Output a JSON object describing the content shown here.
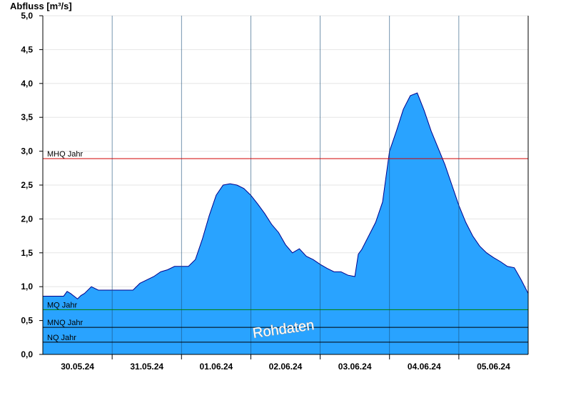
{
  "chart_data": {
    "type": "area",
    "ylabel": "Abfluss [m³/s]",
    "ylim": [
      0,
      5.0
    ],
    "yticks": [
      0,
      0.5,
      1.0,
      1.5,
      2.0,
      2.5,
      3.0,
      3.5,
      4.0,
      4.5,
      5.0
    ],
    "ytick_labels": [
      "0,0",
      "0,5",
      "1,0",
      "1,5",
      "2,0",
      "2,5",
      "3,0",
      "3,5",
      "4,0",
      "4,5",
      "5,0"
    ],
    "xticks": [
      "30.05.24",
      "31.05.24",
      "01.06.24",
      "02.06.24",
      "03.06.24",
      "04.06.24",
      "05.06.24"
    ],
    "x_range_days": [
      -0.5,
      6.5
    ],
    "grid": true,
    "colors": {
      "fill": "#29a3ff",
      "line": "#00008b",
      "mhq": "#d00000",
      "mq": "#008000",
      "mnq": "#000000",
      "nq": "#000000"
    },
    "reference_lines": [
      {
        "name": "MHQ Jahr",
        "value": 2.89,
        "color": "#d00000"
      },
      {
        "name": "MQ Jahr",
        "value": 0.66,
        "color": "#008000"
      },
      {
        "name": "MNQ Jahr",
        "value": 0.4,
        "color": "#000000"
      },
      {
        "name": "NQ Jahr",
        "value": 0.18,
        "color": "#000000"
      }
    ],
    "watermark": "Rohdaten",
    "series": [
      {
        "x": [
          -0.5,
          -0.2,
          -0.15,
          -0.1,
          0.0,
          0.05,
          0.1,
          0.2,
          0.3,
          0.4,
          0.5,
          0.8,
          0.9,
          1.0,
          1.1,
          1.2,
          1.3,
          1.4,
          1.5,
          1.6,
          1.7,
          1.8,
          1.9,
          2.0,
          2.1,
          2.2,
          2.3,
          2.4,
          2.5,
          2.6,
          2.7,
          2.8,
          2.9,
          3.0,
          3.1,
          3.2,
          3.3,
          3.4,
          3.5,
          3.6,
          3.7,
          3.8,
          3.9,
          4.0,
          4.05,
          4.1,
          4.2,
          4.3,
          4.4,
          4.5,
          4.6,
          4.7,
          4.8,
          4.9,
          5.0,
          5.1,
          5.2,
          5.3,
          5.4,
          5.5,
          5.6,
          5.7,
          5.8,
          5.9,
          6.0,
          6.1,
          6.2,
          6.3,
          6.4,
          6.5
        ],
        "y": [
          0.86,
          0.86,
          0.93,
          0.9,
          0.82,
          0.87,
          0.9,
          1.0,
          0.95,
          0.95,
          0.95,
          0.95,
          1.05,
          1.1,
          1.15,
          1.22,
          1.25,
          1.3,
          1.3,
          1.3,
          1.4,
          1.7,
          2.05,
          2.35,
          2.5,
          2.52,
          2.5,
          2.45,
          2.35,
          2.22,
          2.08,
          1.92,
          1.8,
          1.62,
          1.5,
          1.56,
          1.45,
          1.4,
          1.33,
          1.27,
          1.22,
          1.22,
          1.17,
          1.15,
          1.48,
          1.55,
          1.75,
          1.95,
          2.25,
          3.0,
          3.3,
          3.62,
          3.82,
          3.86,
          3.6,
          3.3,
          3.05,
          2.8,
          2.5,
          2.2,
          1.95,
          1.75,
          1.6,
          1.5,
          1.43,
          1.37,
          1.3,
          1.28,
          1.1,
          0.9
        ]
      }
    ]
  }
}
